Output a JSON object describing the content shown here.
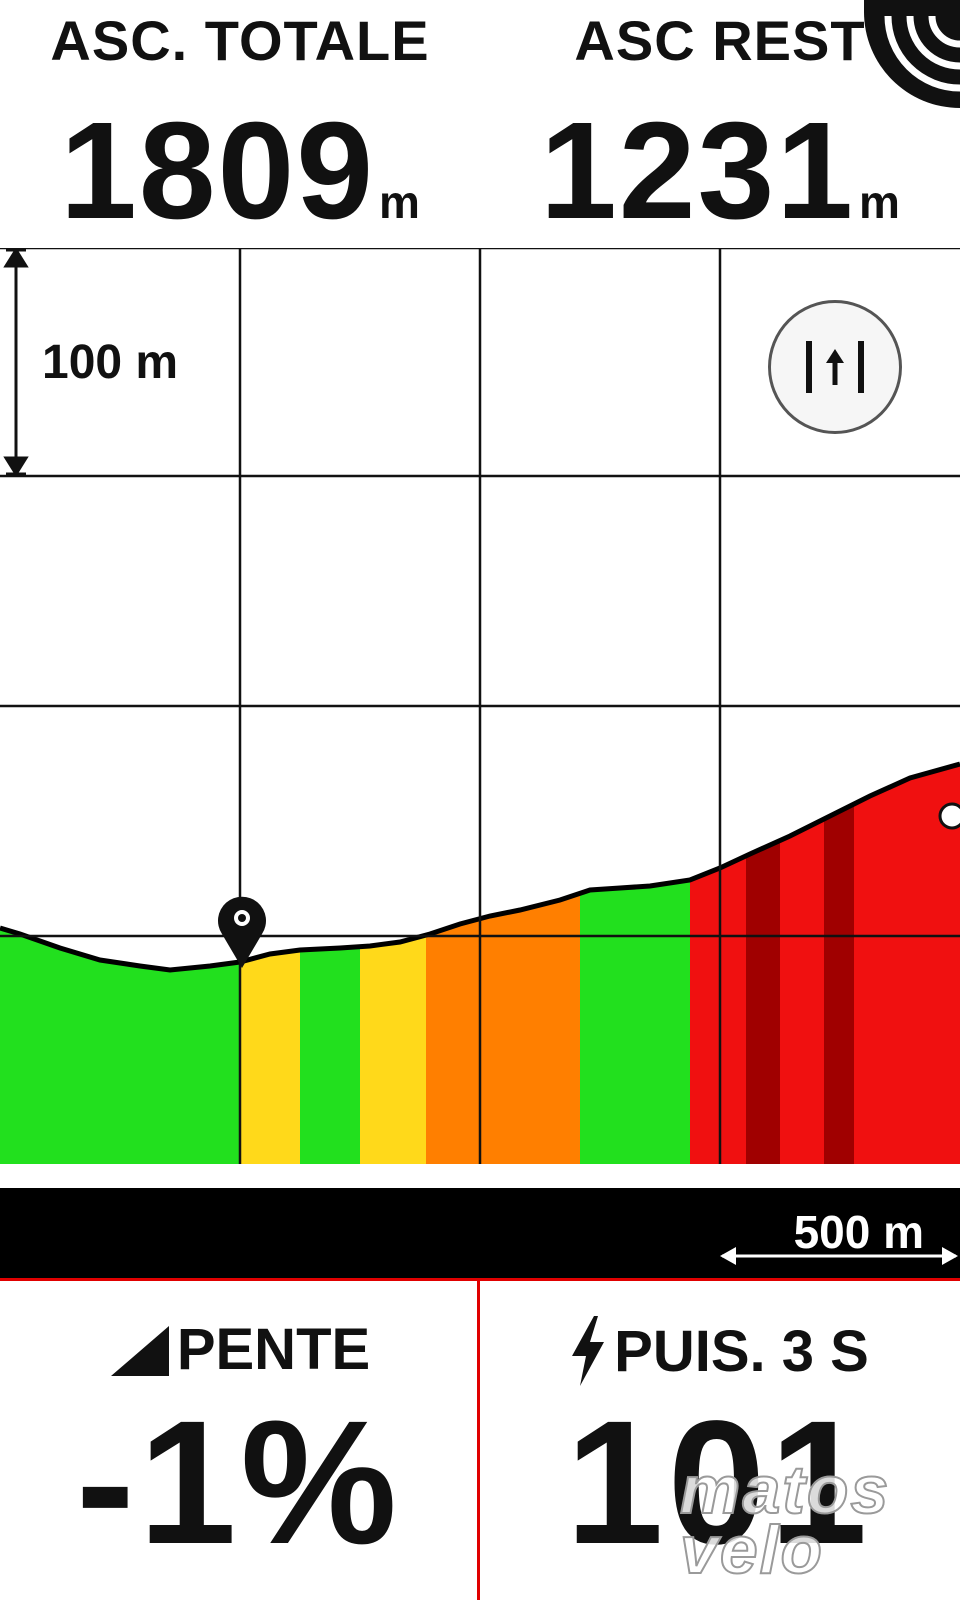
{
  "fields": {
    "total_ascent": {
      "label": "ASC. TOTALE",
      "value": "1809",
      "unit": "m"
    },
    "remaining_ascent": {
      "label": "ASC REST",
      "value": "1231",
      "unit": "m"
    },
    "grade": {
      "label": "PENTE",
      "value": "-1%",
      "icon": "slope-icon"
    },
    "power": {
      "label": "PUIS. 3 S",
      "value": "101",
      "icon": "lightning-icon"
    }
  },
  "chart": {
    "vertical_scale": "100 m",
    "horizontal_scale": "500 m",
    "fit_button_icon": "fit-height-icon",
    "position_icon": "location-pin-icon"
  },
  "watermark": {
    "line1": "matos",
    "line2": "velo"
  },
  "colors": {
    "green": "#22e01e",
    "yellow": "#ffd91a",
    "orange": "#ff7f00",
    "red": "#f01010",
    "dark_red": "#a00000",
    "divider_red": "#e00000"
  }
}
